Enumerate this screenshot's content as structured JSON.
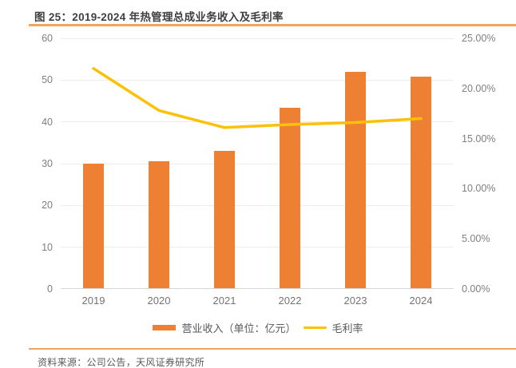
{
  "title": "图 25：2019-2024 年热管理总成业务收入及毛利率",
  "source": "资料来源：公司公告，天风证券研究所",
  "colors": {
    "bar": "#ED8033",
    "line": "#FBC106",
    "rule": "#EFA75F",
    "grid": "#ECECEC",
    "axis_line": "#D6D6D6",
    "tick_text": "#7F7F7F",
    "title_text": "#3F3F3F",
    "source_text": "#595959"
  },
  "chart_data": {
    "type": "bar",
    "subtype": "bar+line combo",
    "categories": [
      "2019",
      "2020",
      "2021",
      "2022",
      "2023",
      "2024"
    ],
    "series": [
      {
        "name": "营业收入（单位：亿元）",
        "type": "bar",
        "axis": "left",
        "values": [
          29.8,
          30.3,
          32.8,
          43.2,
          51.7,
          50.6
        ]
      },
      {
        "name": "毛利率",
        "type": "line",
        "axis": "right",
        "values": [
          22.0,
          17.8,
          16.1,
          16.4,
          16.6,
          17.0
        ]
      }
    ],
    "left_axis": {
      "min": 0,
      "max": 60,
      "step": 10,
      "tick_labels": [
        "0",
        "10",
        "20",
        "30",
        "40",
        "50",
        "60"
      ]
    },
    "right_axis": {
      "min": 0,
      "max": 25,
      "step": 5,
      "tick_labels": [
        "0.00%",
        "5.00%",
        "10.00%",
        "15.00%",
        "20.00%",
        "25.00%"
      ]
    },
    "grid": true,
    "legend_position": "bottom"
  }
}
